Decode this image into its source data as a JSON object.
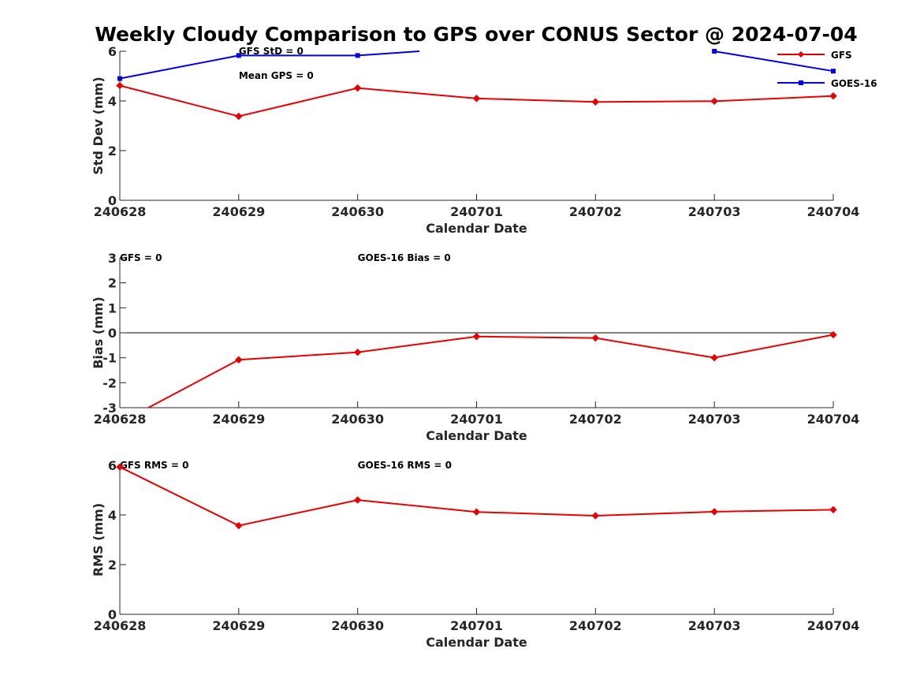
{
  "chart_data": {
    "title": "Weekly Cloudy Comparison to GPS over CONUS Sector @ 2024-07-04",
    "type": "line",
    "x_categories": [
      "240628",
      "240629",
      "240630",
      "240701",
      "240702",
      "240703",
      "240704"
    ],
    "legend": {
      "placement": "top-right",
      "entries": [
        {
          "name": "GFS",
          "color": "#e60000",
          "marker": "diamond"
        },
        {
          "name": "GOES-16",
          "color": "#0000e6",
          "marker": "square"
        }
      ]
    },
    "panels": [
      {
        "id": "stddev",
        "ylabel": "Std Dev (mm)",
        "xlabel": "Calendar Date",
        "ylim": [
          0,
          6
        ],
        "yticks": [
          "0",
          "2",
          "4",
          "6"
        ],
        "zero_line": false,
        "annotations": [
          {
            "text": "GFS StD = 0",
            "x_index": 1
          },
          {
            "text": "Mean GPS = 0",
            "x_index": 1,
            "line": 2
          }
        ],
        "series": [
          {
            "name": "GFS",
            "color": "#e60000",
            "marker": "diamond",
            "segments": [
              [
                [
                  0,
                  4.62
                ],
                [
                  1,
                  3.38
                ],
                [
                  2,
                  4.52
                ],
                [
                  3,
                  4.1
                ],
                [
                  4,
                  3.96
                ],
                [
                  5,
                  3.99
                ],
                [
                  6,
                  4.2
                ]
              ]
            ]
          },
          {
            "name": "GOES-16",
            "color": "#0000e6",
            "marker": "square",
            "segments": [
              [
                [
                  0,
                  4.9
                ],
                [
                  1,
                  5.83
                ],
                [
                  2,
                  5.83
                ],
                [
                  2.52,
                  6.0,
                  "nomark"
                ]
              ],
              [
                [
                  5,
                  6.0
                ],
                [
                  6,
                  5.2
                ]
              ]
            ]
          }
        ]
      },
      {
        "id": "bias",
        "ylabel": "Bias (mm)",
        "xlabel": "Calendar Date",
        "ylim": [
          -3,
          3
        ],
        "yticks": [
          "-3",
          "-2",
          "-1",
          "0",
          "1",
          "2",
          "3"
        ],
        "zero_line": true,
        "annotations": [
          {
            "text": "GFS = 0",
            "x_index": 0
          },
          {
            "text": "GOES-16 Bias  = 0",
            "x_index": 2
          }
        ],
        "series": [
          {
            "name": "GFS",
            "color": "#e60000",
            "marker": "diamond",
            "segments": [
              [
                [
                  0.24,
                  -3.0,
                  "nomark"
                ],
                [
                  1,
                  -1.08
                ],
                [
                  2,
                  -0.78
                ],
                [
                  3,
                  -0.15
                ],
                [
                  4,
                  -0.21
                ],
                [
                  5,
                  -1.0
                ],
                [
                  6,
                  -0.08
                ]
              ]
            ]
          }
        ]
      },
      {
        "id": "rms",
        "ylabel": "RMS (mm)",
        "xlabel": "Calendar Date",
        "ylim": [
          0,
          6
        ],
        "yticks": [
          "0",
          "2",
          "4",
          "6"
        ],
        "zero_line": false,
        "annotations": [
          {
            "text": "GFS RMS = 0",
            "x_index": 0
          },
          {
            "text": "GOES-16 RMS = 0",
            "x_index": 2
          }
        ],
        "series": [
          {
            "name": "GFS",
            "color": "#e60000",
            "marker": "diamond",
            "segments": [
              [
                [
                  0,
                  5.93
                ],
                [
                  1,
                  3.57
                ],
                [
                  2,
                  4.6
                ],
                [
                  3,
                  4.12
                ],
                [
                  4,
                  3.97
                ],
                [
                  5,
                  4.13
                ],
                [
                  6,
                  4.21
                ]
              ]
            ]
          }
        ]
      }
    ]
  }
}
